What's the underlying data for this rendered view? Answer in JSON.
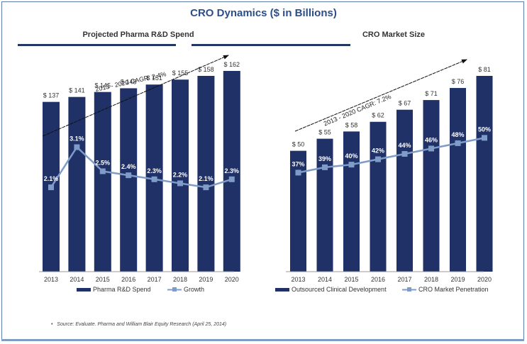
{
  "main_title": "CRO Dynamics ($ in Billions)",
  "source_note": "Source: Evaluate. Pharma and William Blair Equity Research (April 25, 2014)",
  "colors": {
    "bar": "#1f3167",
    "line": "#7f9cc9",
    "title": "#2d4e86",
    "rule": "#1f3864"
  },
  "chart_data": [
    {
      "type": "bar",
      "title": "Projected Pharma R&D Spend",
      "categories": [
        "2013",
        "2014",
        "2015",
        "2016",
        "2017",
        "2018",
        "2019",
        "2020"
      ],
      "series": [
        {
          "name": "Pharma R&D Spend",
          "type": "bar",
          "values": [
            137,
            141,
            145,
            148,
            151,
            155,
            158,
            162
          ],
          "labels": [
            "$ 137",
            "$ 141",
            "$ 145",
            "$ 148",
            "$ 151",
            "$ 155",
            "$ 158",
            "$ 162"
          ]
        },
        {
          "name": "Growth",
          "type": "line",
          "values": [
            2.1,
            3.1,
            2.5,
            2.4,
            2.3,
            2.2,
            2.1,
            2.3
          ],
          "labels": [
            "2.1%",
            "3.1%",
            "2.5%",
            "2.4%",
            "2.3%",
            "2.2%",
            "2.1%",
            "2.3%"
          ]
        }
      ],
      "annotation": "2013 - 2020 CAGR: 2.4%",
      "legend": [
        "Pharma R&D Spend",
        "Growth"
      ],
      "legend_position": "bottom",
      "bar_ylim": [
        0,
        170
      ],
      "line_ylim": [
        0,
        6
      ],
      "grid": false
    },
    {
      "type": "bar",
      "title": "CRO Market Size",
      "categories": [
        "2013",
        "2014",
        "2015",
        "2016",
        "2017",
        "2018",
        "2019",
        "2020"
      ],
      "series": [
        {
          "name": "Outsourced Clinical Development",
          "type": "bar",
          "values": [
            50,
            55,
            58,
            62,
            67,
            71,
            76,
            81
          ],
          "labels": [
            "$ 50",
            "$ 55",
            "$ 58",
            "$ 62",
            "$ 67",
            "$ 71",
            "$ 76",
            "$ 81"
          ]
        },
        {
          "name": "CRO Market Penetration",
          "type": "line",
          "values": [
            37,
            39,
            40,
            42,
            44,
            46,
            48,
            50
          ],
          "labels": [
            "37%",
            "39%",
            "40%",
            "42%",
            "44%",
            "46%",
            "48%",
            "50%"
          ]
        }
      ],
      "annotation": "2013 - 2020 CAGR: 7.2%",
      "legend": [
        "Outsourced Clinical Development",
        "CRO Market Penetration"
      ],
      "legend_position": "bottom",
      "bar_ylim": [
        0,
        90
      ],
      "line_ylim": [
        0,
        80
      ],
      "grid": false
    }
  ]
}
